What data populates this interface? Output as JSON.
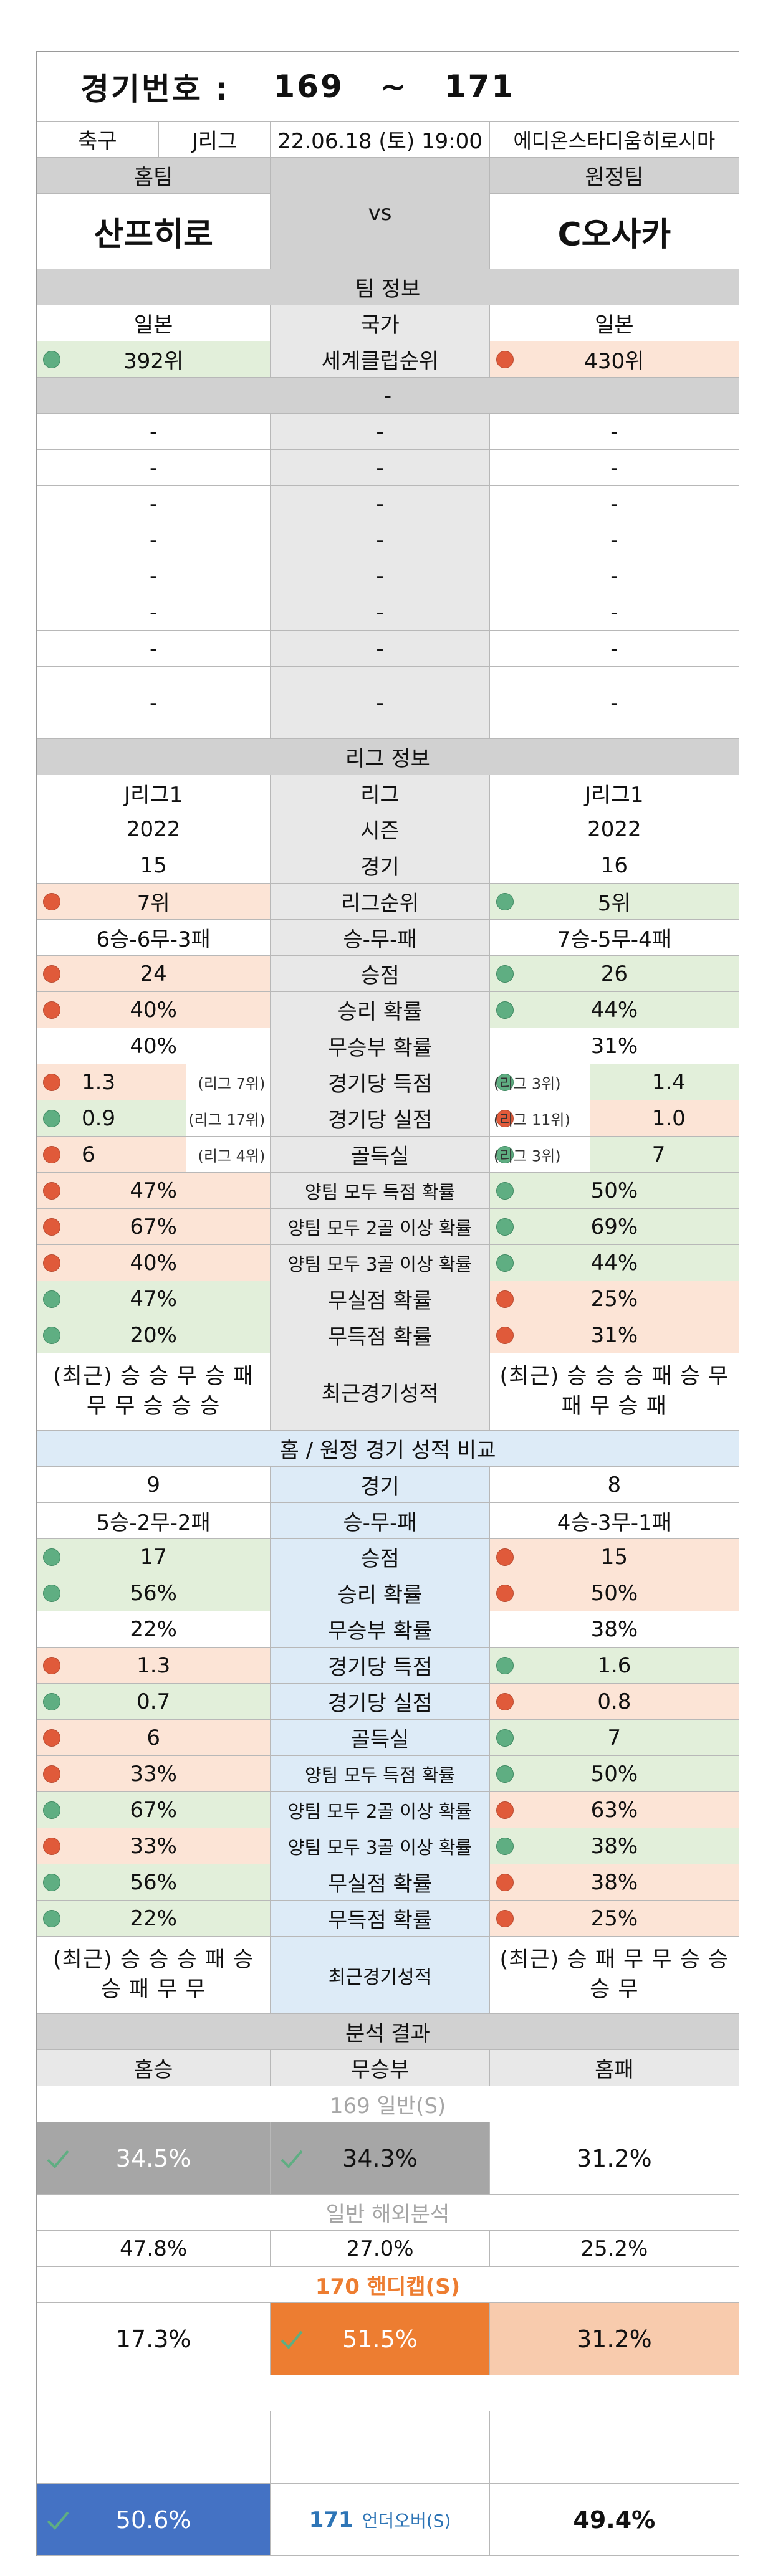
{
  "header": {
    "title_label": "경기번호 :",
    "num_from": "169",
    "tilde": "~",
    "num_to": "171"
  },
  "match": {
    "sport": "축구",
    "league": "J리그",
    "datetime": "22.06.18 (토) 19:00",
    "stadium": "에디온스타디움히로시마"
  },
  "teams": {
    "home_label": "홈팀",
    "away_label": "원정팀",
    "home": "산프히로",
    "vs": "vs",
    "away": "C오사카"
  },
  "team_info": {
    "title": "팀 정보",
    "country_home": "일본",
    "country_label": "국가",
    "country_away": "일본",
    "rank_home": "392위",
    "rank_label": "세계클럽순위",
    "rank_away": "430위",
    "dash": "-"
  },
  "league_info": {
    "title": "리그 정보",
    "rows": [
      {
        "home": "J리그1",
        "label": "리그",
        "away": "J리그1"
      },
      {
        "home": "2022",
        "label": "시즌",
        "away": "2022"
      },
      {
        "home": "15",
        "label": "경기",
        "away": "16"
      },
      {
        "home": "7위",
        "label": "리그순위",
        "away": "5위"
      },
      {
        "home": "6승-6무-3패",
        "label": "승-무-패",
        "away": "7승-5무-4패"
      },
      {
        "home": "24",
        "label": "승점",
        "away": "26"
      },
      {
        "home": "40%",
        "label": "승리 확률",
        "away": "44%"
      },
      {
        "home": "40%",
        "label": "무승부 확률",
        "away": "31%"
      },
      {
        "home": "1.3",
        "home_rank": "(리그 7위)",
        "label": "경기당 득점",
        "away_rank": "(리그 3위)",
        "away": "1.4"
      },
      {
        "home": "0.9",
        "home_rank": "(리그 17위)",
        "label": "경기당 실점",
        "away_rank": "(리그 11위)",
        "away": "1.0"
      },
      {
        "home": "6",
        "home_rank": "(리그 4위)",
        "label": "골득실",
        "away_rank": "(리그 3위)",
        "away": "7"
      },
      {
        "home": "47%",
        "label": "양팀 모두 득점 확률",
        "away": "50%"
      },
      {
        "home": "67%",
        "label": "양팀 모두 2골 이상 확률",
        "away": "69%"
      },
      {
        "home": "40%",
        "label": "양팀 모두 3골 이상 확률",
        "away": "44%"
      },
      {
        "home": "47%",
        "label": "무실점 확률",
        "away": "25%"
      },
      {
        "home": "20%",
        "label": "무득점 확률",
        "away": "31%"
      }
    ],
    "recent_label": "최근경기성적",
    "recent_home": "(최근) 승 승 무 승 패 무 무 승 승 승",
    "recent_away": "(최근) 승 승 승 패 승 무 패 무 승 패"
  },
  "homeaway": {
    "title": "홈 / 원정 경기 성적 비교",
    "rows": [
      {
        "home": "9",
        "label": "경기",
        "away": "8"
      },
      {
        "home": "5승-2무-2패",
        "label": "승-무-패",
        "away": "4승-3무-1패"
      },
      {
        "home": "17",
        "label": "승점",
        "away": "15"
      },
      {
        "home": "56%",
        "label": "승리 확률",
        "away": "50%"
      },
      {
        "home": "22%",
        "label": "무승부 확률",
        "away": "38%"
      },
      {
        "home": "1.3",
        "label": "경기당 득점",
        "away": "1.6"
      },
      {
        "home": "0.7",
        "label": "경기당 실점",
        "away": "0.8"
      },
      {
        "home": "6",
        "label": "골득실",
        "away": "7"
      },
      {
        "home": "33%",
        "label": "양팀 모두 득점 확률",
        "away": "50%"
      },
      {
        "home": "67%",
        "label": "양팀 모두 2골 이상 확률",
        "away": "63%"
      },
      {
        "home": "33%",
        "label": "양팀 모두 3골 이상 확률",
        "away": "38%"
      },
      {
        "home": "56%",
        "label": "무실점 확률",
        "away": "38%"
      },
      {
        "home": "22%",
        "label": "무득점 확률",
        "away": "25%"
      }
    ],
    "recent_label": "최근경기성적",
    "recent_home": "(최근) 승 승 승 패 승 승 패 무 무",
    "recent_away": "(최근) 승 패 무 무 승 승 승 무"
  },
  "analysis": {
    "title": "분석 결과",
    "h_win": "홈승",
    "draw": "무승부",
    "h_loss": "홈패",
    "s169_title": "169 일반(S)",
    "s169": [
      "34.5%",
      "34.3%",
      "31.2%"
    ],
    "overseas_title": "일반 해외분석",
    "overseas": [
      "47.8%",
      "27.0%",
      "25.2%"
    ],
    "s170_title": "170 핸디캡(S)",
    "s170": [
      "17.3%",
      "51.5%",
      "31.2%"
    ],
    "s171_num": "171",
    "s171_label": "언더오버(S)",
    "s171": [
      "50.6%",
      "49.4%"
    ]
  },
  "colors": {
    "red_dot": "#e05a3a",
    "green_dot": "#5fae82",
    "orange": "#ed7d31",
    "peach": "#f8cbad",
    "blue": "#4472c4",
    "gray": "#a6a6a6",
    "light_green": "#e2efda",
    "light_peach": "#fce4d6",
    "light_blue": "#ddebf7"
  }
}
